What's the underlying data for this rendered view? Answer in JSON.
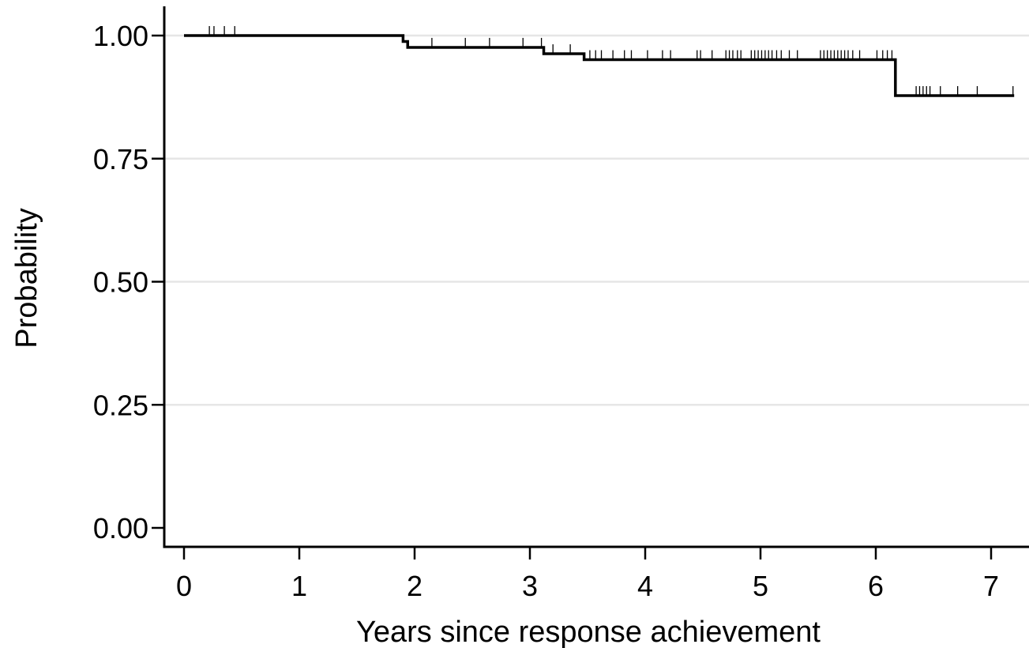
{
  "chart_data": {
    "type": "line",
    "subtype": "kaplan-meier step",
    "title": "",
    "xlabel": "Years since response achievement",
    "ylabel": "Probability",
    "xlim": [
      0,
      7
    ],
    "ylim": [
      0,
      1
    ],
    "x_ticks": [
      0,
      1,
      2,
      3,
      4,
      5,
      6,
      7
    ],
    "x_tick_labels": [
      "0",
      "1",
      "2",
      "3",
      "4",
      "5",
      "6",
      "7"
    ],
    "y_ticks": [
      0,
      0.25,
      0.5,
      0.75,
      1
    ],
    "y_tick_labels": [
      "0.00",
      "0.25",
      "0.50",
      "0.75",
      "1.00"
    ],
    "grid": "horizontal",
    "legend": "none",
    "series": [
      {
        "steps": [
          {
            "x": 0.0,
            "y": 1.0
          },
          {
            "x": 1.9,
            "y": 0.988
          },
          {
            "x": 1.94,
            "y": 0.976
          },
          {
            "x": 3.12,
            "y": 0.963
          },
          {
            "x": 3.47,
            "y": 0.951
          },
          {
            "x": 6.17,
            "y": 0.878
          }
        ],
        "end_x": 7.2,
        "censored": [
          {
            "x": 0.22,
            "y": 1.0
          },
          {
            "x": 0.26,
            "y": 1.0
          },
          {
            "x": 0.35,
            "y": 1.0
          },
          {
            "x": 0.44,
            "y": 1.0
          },
          {
            "x": 2.15,
            "y": 0.976
          },
          {
            "x": 2.44,
            "y": 0.976
          },
          {
            "x": 2.65,
            "y": 0.976
          },
          {
            "x": 2.94,
            "y": 0.976
          },
          {
            "x": 3.1,
            "y": 0.976
          },
          {
            "x": 3.2,
            "y": 0.963
          },
          {
            "x": 3.35,
            "y": 0.963
          },
          {
            "x": 3.52,
            "y": 0.951
          },
          {
            "x": 3.57,
            "y": 0.951
          },
          {
            "x": 3.62,
            "y": 0.951
          },
          {
            "x": 3.72,
            "y": 0.951
          },
          {
            "x": 3.82,
            "y": 0.951
          },
          {
            "x": 3.88,
            "y": 0.951
          },
          {
            "x": 4.02,
            "y": 0.951
          },
          {
            "x": 4.15,
            "y": 0.951
          },
          {
            "x": 4.22,
            "y": 0.951
          },
          {
            "x": 4.45,
            "y": 0.951
          },
          {
            "x": 4.48,
            "y": 0.951
          },
          {
            "x": 4.58,
            "y": 0.951
          },
          {
            "x": 4.7,
            "y": 0.951
          },
          {
            "x": 4.73,
            "y": 0.951
          },
          {
            "x": 4.76,
            "y": 0.951
          },
          {
            "x": 4.8,
            "y": 0.951
          },
          {
            "x": 4.83,
            "y": 0.951
          },
          {
            "x": 4.92,
            "y": 0.951
          },
          {
            "x": 4.95,
            "y": 0.951
          },
          {
            "x": 4.98,
            "y": 0.951
          },
          {
            "x": 5.01,
            "y": 0.951
          },
          {
            "x": 5.04,
            "y": 0.951
          },
          {
            "x": 5.07,
            "y": 0.951
          },
          {
            "x": 5.1,
            "y": 0.951
          },
          {
            "x": 5.14,
            "y": 0.951
          },
          {
            "x": 5.18,
            "y": 0.951
          },
          {
            "x": 5.25,
            "y": 0.951
          },
          {
            "x": 5.32,
            "y": 0.951
          },
          {
            "x": 5.52,
            "y": 0.951
          },
          {
            "x": 5.55,
            "y": 0.951
          },
          {
            "x": 5.58,
            "y": 0.951
          },
          {
            "x": 5.61,
            "y": 0.951
          },
          {
            "x": 5.64,
            "y": 0.951
          },
          {
            "x": 5.67,
            "y": 0.951
          },
          {
            "x": 5.7,
            "y": 0.951
          },
          {
            "x": 5.73,
            "y": 0.951
          },
          {
            "x": 5.76,
            "y": 0.951
          },
          {
            "x": 5.8,
            "y": 0.951
          },
          {
            "x": 5.86,
            "y": 0.951
          },
          {
            "x": 6.01,
            "y": 0.951
          },
          {
            "x": 6.06,
            "y": 0.951
          },
          {
            "x": 6.1,
            "y": 0.951
          },
          {
            "x": 6.14,
            "y": 0.951
          },
          {
            "x": 6.35,
            "y": 0.878
          },
          {
            "x": 6.38,
            "y": 0.878
          },
          {
            "x": 6.41,
            "y": 0.878
          },
          {
            "x": 6.44,
            "y": 0.878
          },
          {
            "x": 6.47,
            "y": 0.878
          },
          {
            "x": 6.56,
            "y": 0.878
          },
          {
            "x": 6.71,
            "y": 0.878
          },
          {
            "x": 6.88,
            "y": 0.878
          },
          {
            "x": 7.19,
            "y": 0.878
          }
        ]
      }
    ]
  }
}
